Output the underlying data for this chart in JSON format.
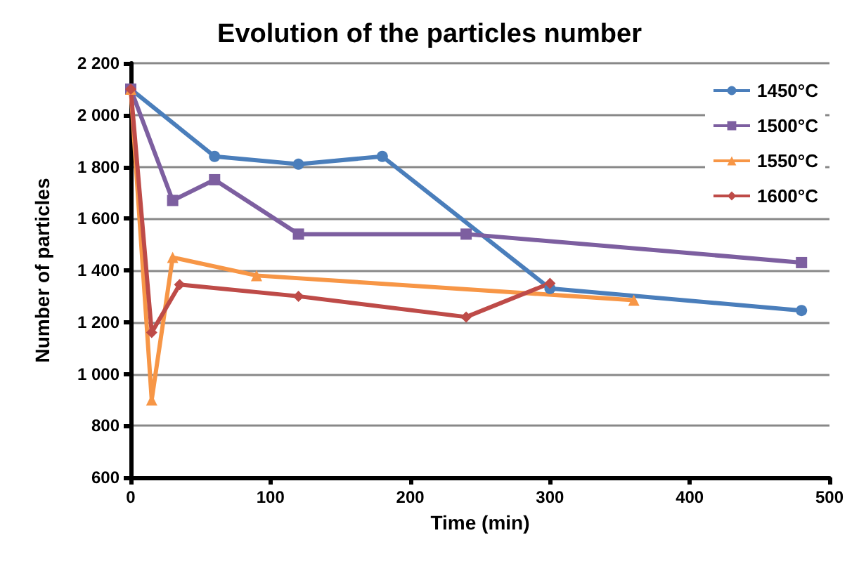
{
  "chart_data": {
    "type": "line",
    "title": "Evolution of the particles number",
    "xlabel": "Time (min)",
    "ylabel": "Number of particles",
    "series": [
      {
        "name": "1450°C",
        "color": "#4a7ebb",
        "marker": "circle",
        "x": [
          0,
          60,
          120,
          180,
          300,
          480
        ],
        "values": [
          2100,
          1840,
          1810,
          1840,
          1330,
          1245
        ]
      },
      {
        "name": "1500°C",
        "color": "#7d5fa0",
        "marker": "square",
        "x": [
          0,
          30,
          60,
          120,
          240,
          480
        ],
        "values": [
          2100,
          1670,
          1750,
          1540,
          1540,
          1430
        ]
      },
      {
        "name": "1550°C",
        "color": "#f79646",
        "marker": "triangle",
        "x": [
          0,
          15,
          30,
          90,
          360
        ],
        "values": [
          2100,
          900,
          1450,
          1380,
          1285
        ]
      },
      {
        "name": "1600°C",
        "color": "#be4b48",
        "marker": "diamond",
        "x": [
          0,
          15,
          35,
          120,
          240,
          300
        ],
        "values": [
          2100,
          1160,
          1345,
          1300,
          1220,
          1350
        ]
      }
    ],
    "xlim": [
      0,
      500
    ],
    "xticks": [
      0,
      100,
      200,
      300,
      400,
      500
    ],
    "ylim": [
      600,
      2200
    ],
    "yticks": [
      600,
      800,
      {
        "value": 1000,
        "label": "1 000"
      },
      {
        "value": 1200,
        "label": "1 200"
      },
      {
        "value": 1400,
        "label": "1 400"
      },
      {
        "value": 1600,
        "label": "1 600"
      },
      {
        "value": 1800,
        "label": "1 800"
      },
      {
        "value": 2000,
        "label": "2 000"
      },
      {
        "value": 2200,
        "label": "2 200"
      }
    ],
    "grid": "y",
    "legend": "top right"
  }
}
